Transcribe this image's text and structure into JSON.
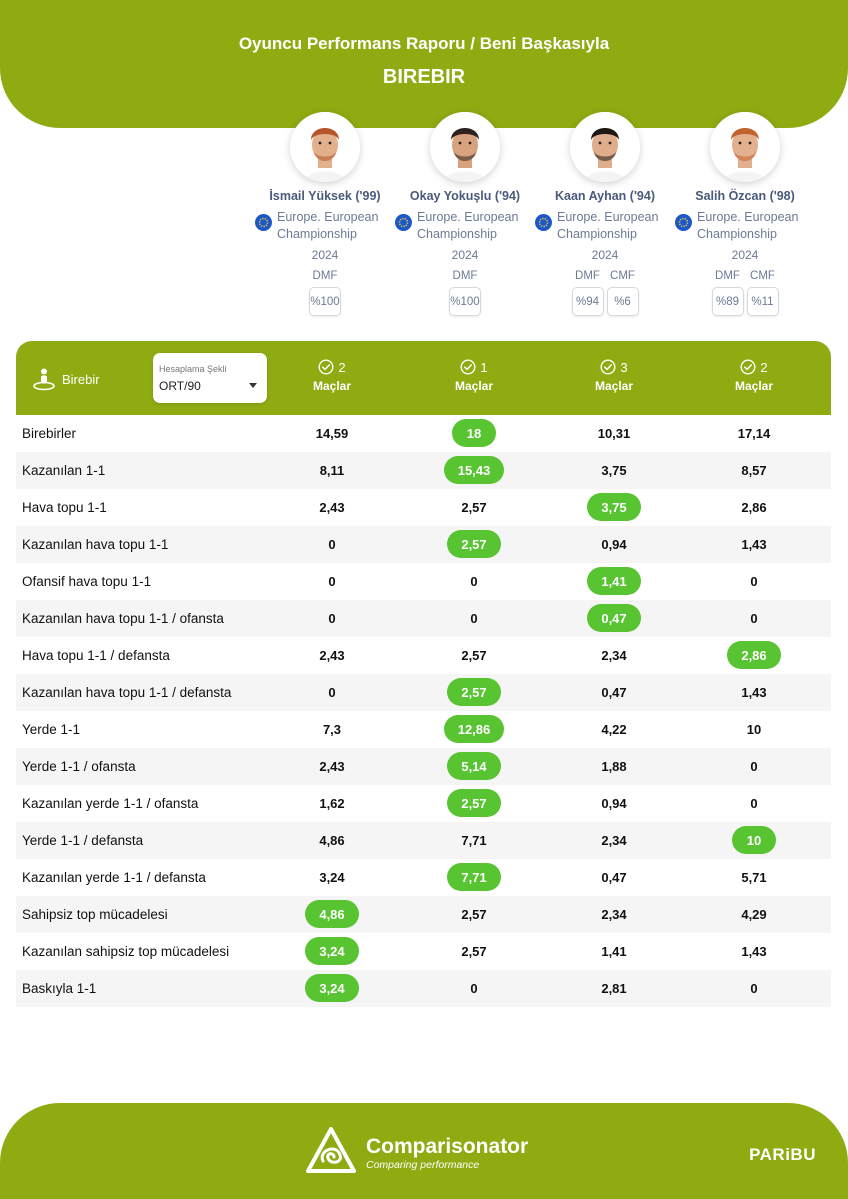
{
  "header": {
    "title": "Oyuncu Performans Raporu / Beni Başkasıyla",
    "subtitle": "BIREBIR"
  },
  "players": [
    {
      "name": "İsmail Yüksek ('99)",
      "competition_line1": "Europe. European",
      "competition_line2": "Championship",
      "year": "2024",
      "positions": [
        {
          "label": "DMF",
          "pct": "%100"
        }
      ],
      "skin": "#e3b08c",
      "hair": "#b5562a"
    },
    {
      "name": "Okay Yokuşlu ('94)",
      "competition_line1": "Europe. European",
      "competition_line2": "Championship",
      "year": "2024",
      "positions": [
        {
          "label": "DMF",
          "pct": "%100"
        }
      ],
      "skin": "#d9a27e",
      "hair": "#2b2220"
    },
    {
      "name": "Kaan Ayhan ('94)",
      "competition_line1": "Europe. European",
      "competition_line2": "Championship",
      "year": "2024",
      "positions": [
        {
          "label": "DMF",
          "pct": "%94"
        },
        {
          "label": "CMF",
          "pct": "%6"
        }
      ],
      "skin": "#e0ad8c",
      "hair": "#1d1716"
    },
    {
      "name": "Salih Özcan ('98)",
      "competition_line1": "Europe. European",
      "competition_line2": "Championship",
      "year": "2024",
      "positions": [
        {
          "label": "DMF",
          "pct": "%89"
        },
        {
          "label": "CMF",
          "pct": "%11"
        }
      ],
      "skin": "#e2b08e",
      "hair": "#c2622e"
    }
  ],
  "table": {
    "category_label": "Birebir",
    "calc": {
      "label": "Hesaplama Şekli",
      "value": "ORT/90"
    },
    "columns": [
      {
        "count": "2",
        "label": "Maçlar"
      },
      {
        "count": "1",
        "label": "Maçlar"
      },
      {
        "count": "3",
        "label": "Maçlar"
      },
      {
        "count": "2",
        "label": "Maçlar"
      }
    ],
    "rows": [
      {
        "label": "Birebirler",
        "values": [
          "14,59",
          "18",
          "10,31",
          "17,14"
        ],
        "best": 1
      },
      {
        "label": "Kazanılan 1-1",
        "values": [
          "8,11",
          "15,43",
          "3,75",
          "8,57"
        ],
        "best": 1
      },
      {
        "label": "Hava topu 1-1",
        "values": [
          "2,43",
          "2,57",
          "3,75",
          "2,86"
        ],
        "best": 2
      },
      {
        "label": "Kazanılan hava topu 1-1",
        "values": [
          "0",
          "2,57",
          "0,94",
          "1,43"
        ],
        "best": 1
      },
      {
        "label": "Ofansif hava topu 1-1",
        "values": [
          "0",
          "0",
          "1,41",
          "0"
        ],
        "best": 2
      },
      {
        "label": "Kazanılan hava topu 1-1 / ofansta",
        "values": [
          "0",
          "0",
          "0,47",
          "0"
        ],
        "best": 2
      },
      {
        "label": "Hava topu 1-1 / defansta",
        "values": [
          "2,43",
          "2,57",
          "2,34",
          "2,86"
        ],
        "best": 3
      },
      {
        "label": "Kazanılan hava topu 1-1 / defansta",
        "values": [
          "0",
          "2,57",
          "0,47",
          "1,43"
        ],
        "best": 1
      },
      {
        "label": "Yerde 1-1",
        "values": [
          "7,3",
          "12,86",
          "4,22",
          "10"
        ],
        "best": 1
      },
      {
        "label": "Yerde 1-1 / ofansta",
        "values": [
          "2,43",
          "5,14",
          "1,88",
          "0"
        ],
        "best": 1
      },
      {
        "label": "Kazanılan yerde 1-1 / ofansta",
        "values": [
          "1,62",
          "2,57",
          "0,94",
          "0"
        ],
        "best": 1
      },
      {
        "label": "Yerde 1-1 / defansta",
        "values": [
          "4,86",
          "7,71",
          "2,34",
          "10"
        ],
        "best": 3
      },
      {
        "label": "Kazanılan yerde 1-1 / defansta",
        "values": [
          "3,24",
          "7,71",
          "0,47",
          "5,71"
        ],
        "best": 1
      },
      {
        "label": "Sahipsiz top mücadelesi",
        "values": [
          "4,86",
          "2,57",
          "2,34",
          "4,29"
        ],
        "best": 0
      },
      {
        "label": "Kazanılan sahipsiz top mücadelesi",
        "values": [
          "3,24",
          "2,57",
          "1,41",
          "1,43"
        ],
        "best": 0
      },
      {
        "label": "Baskıyla 1-1",
        "values": [
          "3,24",
          "0",
          "2,81",
          "0"
        ],
        "best": 0
      }
    ]
  },
  "footer": {
    "brand": "Comparisonator",
    "tagline": "Comparing performance",
    "sponsor": "PARiBU"
  },
  "colors": {
    "accent": "#8fab12",
    "best": "#58c431",
    "text_muted": "#6c7a94"
  }
}
